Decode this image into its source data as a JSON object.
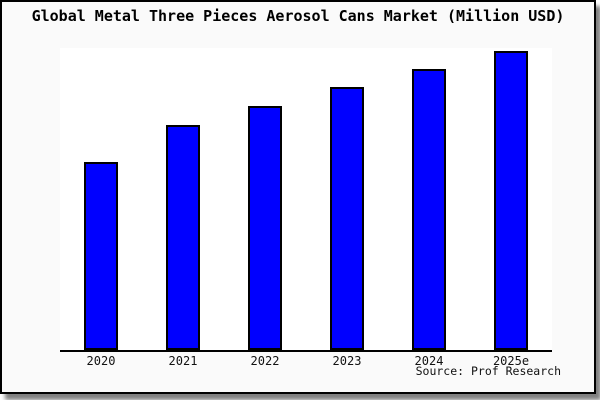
{
  "header": {
    "title": "Global Metal Three Pieces Aerosol Cans Market (Million USD)"
  },
  "footer": {
    "source_text": "Source: Prof Research"
  },
  "colors": {
    "figure_background": "#fafafa",
    "plot_background": "#ffffff",
    "bar_fill": "#0000ff",
    "bar_edge": "#000000",
    "axis_line": "#000000",
    "frame_border": "#000000",
    "shadow": "#9a9a9a",
    "text": "#000000"
  },
  "chart_data": {
    "type": "bar",
    "title": "Global Metal Three Pieces Aerosol Cans Market (Million USD)",
    "categories": [
      "2020",
      "2021",
      "2022",
      "2023",
      "2024",
      "2025e"
    ],
    "values": [
      188,
      225,
      244,
      263,
      281,
      299
    ],
    "units": "relative height (no y-axis tick labels shown in figure)",
    "xlabel": "",
    "ylabel": "",
    "ylim": [
      0,
      302
    ],
    "grid": false,
    "legend": "none",
    "y_axis_visible": false,
    "x_axis_visible": true,
    "annotations": [
      "Source: Prof Research"
    ]
  }
}
